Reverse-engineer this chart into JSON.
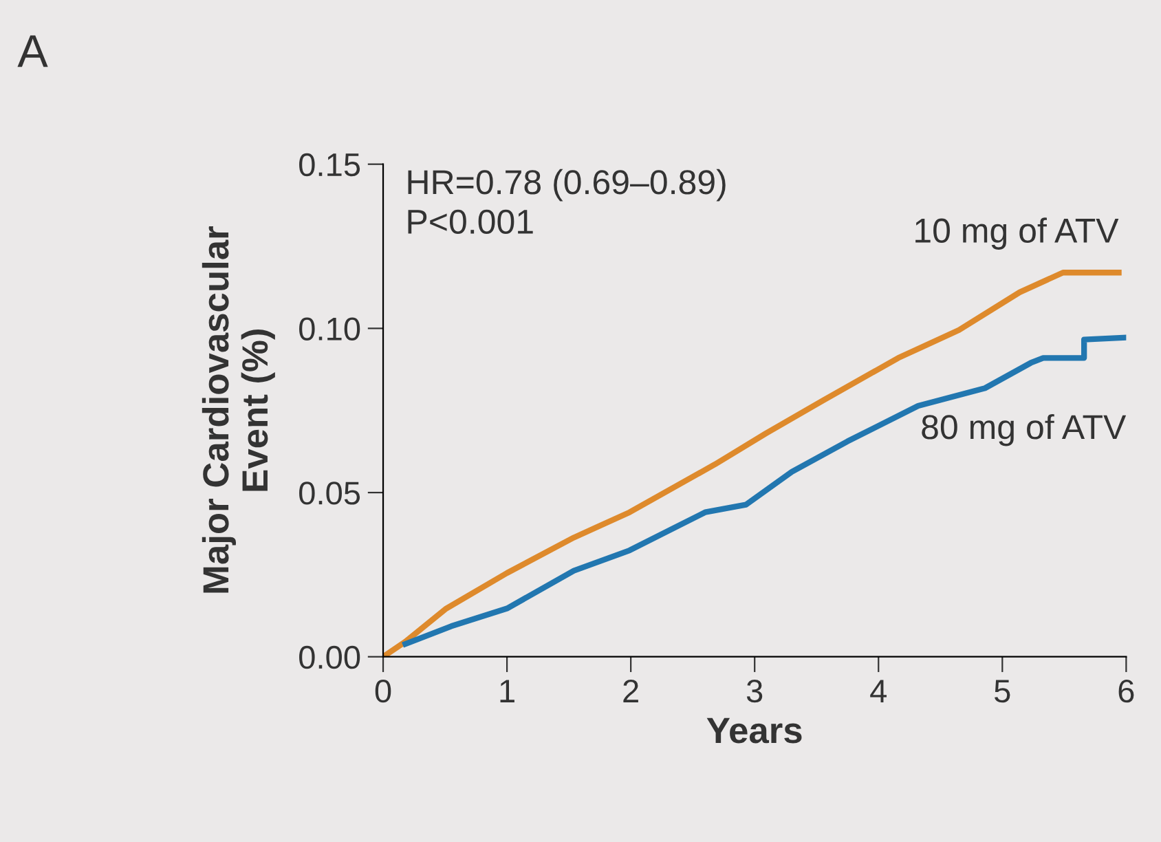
{
  "chart_data": {
    "type": "line",
    "xlabel": "Years",
    "ylabel": "Major Cardiovascular\nEvent (%)",
    "annotations": [
      "A",
      "HR=0.78 (0.69–0.89)\nP<0.001"
    ],
    "xlim": [
      0,
      6
    ],
    "ylim": [
      0,
      0.15
    ],
    "xticks": [
      0,
      1,
      2,
      3,
      4,
      5,
      6
    ],
    "yticks": [
      {
        "value": 0,
        "label": "0.00"
      },
      {
        "value": 0.05,
        "label": "0.05"
      },
      {
        "value": 0.1,
        "label": "0.10"
      },
      {
        "value": 0.15,
        "label": "0.15"
      }
    ],
    "grid": false,
    "legend": false,
    "series": [
      {
        "name": "10 mg of ATV",
        "color": "#de8a2c",
        "x": [
          0,
          0.18,
          0.51,
          1.0,
          1.54,
          1.99,
          2.68,
          3.09,
          3.55,
          4.16,
          4.65,
          5.14,
          5.49,
          5.94
        ],
        "values": [
          0,
          0.0046,
          0.0147,
          0.0255,
          0.0363,
          0.044,
          0.0586,
          0.068,
          0.078,
          0.091,
          0.0995,
          0.111,
          0.117,
          0.117
        ]
      },
      {
        "name": "80 mg of ATV",
        "color": "#2277b0",
        "x": [
          0.18,
          0.55,
          1.0,
          1.54,
          1.99,
          2.6,
          2.93,
          3.3,
          3.75,
          4.32,
          4.86,
          5.23,
          5.33,
          5.66,
          5.66,
          6.0
        ],
        "values": [
          0.0039,
          0.0093,
          0.0147,
          0.0262,
          0.0324,
          0.044,
          0.0463,
          0.0563,
          0.0656,
          0.0764,
          0.0818,
          0.0895,
          0.091,
          0.091,
          0.0966,
          0.0972
        ]
      }
    ]
  }
}
